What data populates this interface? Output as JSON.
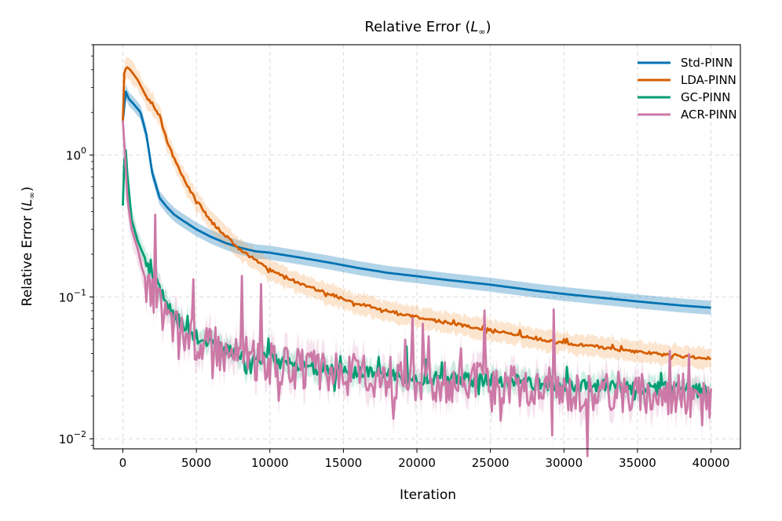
{
  "chart_data": {
    "type": "line",
    "title": "Relative Error (L∞)",
    "title_main": "Relative Error (",
    "title_sym": "L",
    "title_sub": "∞",
    "title_close": ")",
    "xlabel": "Iteration",
    "ylabel": "Relative Error (L∞)",
    "ylabel_main": "Relative Error (",
    "ylabel_sym": "L",
    "ylabel_sub": "∞",
    "ylabel_close": ")",
    "xlim": [
      -2000,
      42000
    ],
    "ylim": [
      0.0085,
      6.0
    ],
    "yscale": "log",
    "grid": true,
    "legend_position": "top-right",
    "x_ticks": [
      0,
      5000,
      10000,
      15000,
      20000,
      25000,
      30000,
      35000,
      40000
    ],
    "x_tick_labels": [
      "0",
      "5000",
      "10000",
      "15000",
      "20000",
      "25000",
      "30000",
      "35000",
      "40000"
    ],
    "y_ticks": [
      {
        "value": 1,
        "base": "10",
        "exp": "0"
      },
      {
        "value": 0.1,
        "base": "10",
        "exp": "−1"
      },
      {
        "value": 0.01,
        "base": "10",
        "exp": "−2"
      }
    ],
    "series": [
      {
        "name": "Std-PINN",
        "color": "#0072b2",
        "band_color": "#0072b2",
        "noise": 0,
        "band_rel": 0.12,
        "x": [
          0,
          200,
          400,
          800,
          1200,
          1600,
          2000,
          2500,
          3000,
          3500,
          4000,
          5000,
          6000,
          7000,
          8000,
          9000,
          10000,
          12000,
          14000,
          16000,
          18000,
          20000,
          22000,
          25000,
          28000,
          30000,
          32000,
          35000,
          38000,
          40000
        ],
        "y": [
          1.75,
          2.8,
          2.5,
          2.25,
          2.0,
          1.4,
          0.75,
          0.5,
          0.43,
          0.38,
          0.35,
          0.3,
          0.265,
          0.24,
          0.222,
          0.21,
          0.205,
          0.19,
          0.175,
          0.16,
          0.148,
          0.14,
          0.132,
          0.122,
          0.111,
          0.105,
          0.1,
          0.093,
          0.087,
          0.084
        ]
      },
      {
        "name": "LDA-PINN",
        "color": "#d55e00",
        "band_color": "#f5a860",
        "noise": 0.01,
        "band_rel": 0.14,
        "x": [
          0,
          100,
          250,
          500,
          1000,
          1500,
          2000,
          2500,
          3000,
          4000,
          5000,
          6000,
          7000,
          8000,
          9000,
          10000,
          12000,
          14000,
          16000,
          18000,
          20000,
          22000,
          24000,
          26000,
          28000,
          30000,
          32000,
          34000,
          36000,
          38000,
          40000
        ],
        "y": [
          1.75,
          3.8,
          4.2,
          4.0,
          3.4,
          2.7,
          2.3,
          1.9,
          1.25,
          0.72,
          0.48,
          0.34,
          0.27,
          0.215,
          0.182,
          0.155,
          0.125,
          0.105,
          0.09,
          0.08,
          0.072,
          0.066,
          0.061,
          0.056,
          0.051,
          0.047,
          0.045,
          0.042,
          0.04,
          0.038,
          0.037
        ]
      },
      {
        "name": "GC-PINN",
        "color": "#009e73",
        "band_color": "#5fcca6",
        "noise": 0.05,
        "band_rel": 0.14,
        "x": [
          0,
          150,
          300,
          600,
          1000,
          1300,
          1700,
          2000,
          2500,
          3000,
          3500,
          4000,
          5000,
          6000,
          7000,
          8000,
          9000,
          10000,
          12000,
          14000,
          16000,
          18000,
          20000,
          22000,
          24000,
          26000,
          28000,
          30000,
          32000,
          34000,
          36000,
          38000,
          40000
        ],
        "y": [
          0.44,
          1.3,
          0.75,
          0.35,
          0.25,
          0.21,
          0.17,
          0.14,
          0.11,
          0.09,
          0.075,
          0.065,
          0.053,
          0.047,
          0.043,
          0.04,
          0.038,
          0.036,
          0.033,
          0.031,
          0.029,
          0.028,
          0.027,
          0.027,
          0.026,
          0.026,
          0.025,
          0.024,
          0.024,
          0.023,
          0.023,
          0.022,
          0.022
        ]
      },
      {
        "name": "ACR-PINN",
        "color": "#cc79a7",
        "band_color": "#dfa6c6",
        "noise": 0.15,
        "band_rel": 0.2,
        "x": [
          0,
          150,
          300,
          600,
          1000,
          1300,
          1700,
          2000,
          2500,
          3000,
          3500,
          4000,
          5000,
          6000,
          7000,
          8000,
          9000,
          10000,
          12000,
          14000,
          16000,
          18000,
          20000,
          22000,
          24000,
          26000,
          28000,
          30000,
          32000,
          34000,
          36000,
          38000,
          40000
        ],
        "y": [
          1.75,
          1.0,
          0.5,
          0.3,
          0.22,
          0.16,
          0.12,
          0.1,
          0.085,
          0.073,
          0.065,
          0.058,
          0.05,
          0.045,
          0.041,
          0.038,
          0.036,
          0.034,
          0.031,
          0.029,
          0.028,
          0.027,
          0.026,
          0.025,
          0.025,
          0.024,
          0.023,
          0.022,
          0.022,
          0.021,
          0.021,
          0.021,
          0.017
        ]
      }
    ]
  }
}
